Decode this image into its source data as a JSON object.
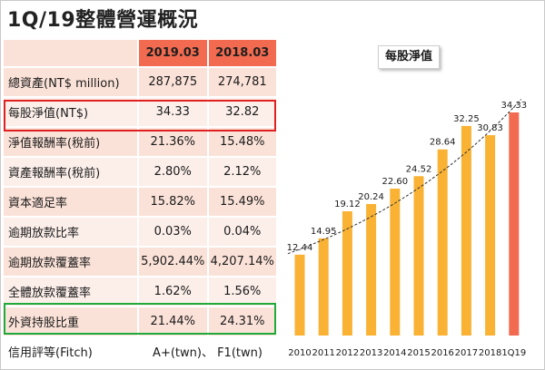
{
  "title": "1Q/19整體營運概況",
  "table": {
    "columns": [
      "2019.03",
      "2018.03"
    ],
    "rows": [
      {
        "label": "總資產(NT$ million)",
        "v1": "287,875",
        "v2": "274,781"
      },
      {
        "label": "每股淨值(NT$)",
        "v1": "34.33",
        "v2": "32.82"
      },
      {
        "label": "淨值報酬率(稅前)",
        "v1": "21.36%",
        "v2": "15.48%"
      },
      {
        "label": "資產報酬率(稅前)",
        "v1": "2.80%",
        "v2": "2.12%"
      },
      {
        "label": "資本適足率",
        "v1": "15.82%",
        "v2": "15.49%"
      },
      {
        "label": "逾期放款比率",
        "v1": "0.03%",
        "v2": "0.04%"
      },
      {
        "label": "逾期放款覆蓋率",
        "v1": "5,902.44%",
        "v2": "4,207.14%"
      },
      {
        "label": "全體放款覆蓋率",
        "v1": "1.62%",
        "v2": "1.56%"
      },
      {
        "label": "外資持股比重",
        "v1": "21.44%",
        "v2": "24.31%"
      }
    ],
    "rating": {
      "label": "信用評等(Fitch)",
      "value": "A+(twn)、 F1(twn)"
    }
  },
  "colors": {
    "header": "#f26a4f",
    "row_band": "#fbe2d8",
    "row_band_alt": "#fcefea",
    "highlight_red": "#e02020",
    "highlight_green": "#1faa3a",
    "bar": "#f9b233",
    "bar_latest": "#f26a4f",
    "trend": "#333333"
  },
  "chart_data": {
    "type": "bar",
    "title": "每股淨值",
    "categories": [
      "2010",
      "2011",
      "2012",
      "2013",
      "2014",
      "2015",
      "2016",
      "2017",
      "2018",
      "1Q19"
    ],
    "values": [
      12.44,
      14.95,
      19.12,
      20.24,
      22.6,
      24.52,
      28.64,
      32.25,
      30.83,
      34.33
    ],
    "value_labels": [
      "12.44",
      "14.95",
      "19.12",
      "20.24",
      "22.60",
      "24.52",
      "28.64",
      "32.25",
      "30.83",
      "34.33"
    ],
    "highlight_last": true,
    "trendline": "dashed exponential",
    "xlabel": "",
    "ylabel": "",
    "ylim": [
      0,
      36
    ],
    "grid": false,
    "legend": "none"
  }
}
